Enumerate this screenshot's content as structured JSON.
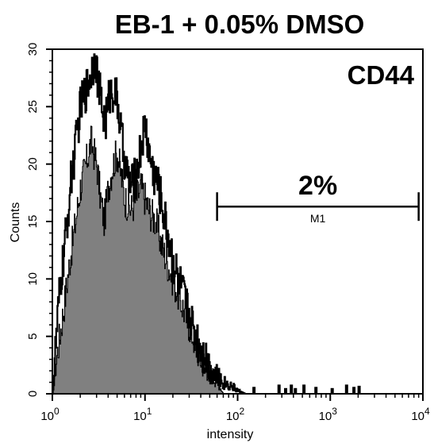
{
  "chart_data": {
    "type": "area",
    "title": "EB-1 + 0.05% DMSO",
    "marker_label": "CD44",
    "xlabel": "intensity",
    "ylabel": "Counts",
    "x_scale": "log",
    "xlim": [
      1,
      10000
    ],
    "ylim": [
      0,
      30
    ],
    "x_ticks": [
      {
        "base": "10",
        "exp": "0"
      },
      {
        "base": "10",
        "exp": "1"
      },
      {
        "base": "10",
        "exp": "2"
      },
      {
        "base": "10",
        "exp": "3"
      },
      {
        "base": "10",
        "exp": "4"
      }
    ],
    "y_ticks": [
      "0",
      "5",
      "10",
      "15",
      "20",
      "25",
      "30"
    ],
    "gate": {
      "name": "M1",
      "x_start": 60,
      "x_end": 9000,
      "y_level": 16.3,
      "percent_label": "2%"
    },
    "colors": {
      "filled_series": "#808080",
      "outline_series": "#000000"
    },
    "series": [
      {
        "role": "filled",
        "points": [
          [
            1.0,
            0
          ],
          [
            1.1,
            3
          ],
          [
            1.3,
            7
          ],
          [
            1.5,
            11
          ],
          [
            1.7,
            14
          ],
          [
            2.0,
            18
          ],
          [
            2.3,
            20
          ],
          [
            2.6,
            22
          ],
          [
            3.0,
            20
          ],
          [
            3.3,
            17
          ],
          [
            3.6,
            15
          ],
          [
            4.0,
            18
          ],
          [
            4.5,
            20
          ],
          [
            5.0,
            21
          ],
          [
            5.5,
            19
          ],
          [
            6.0,
            17
          ],
          [
            7.0,
            16
          ],
          [
            8.0,
            17
          ],
          [
            9.0,
            18
          ],
          [
            10.0,
            17
          ],
          [
            11.0,
            16
          ],
          [
            13.0,
            15
          ],
          [
            15.0,
            13
          ],
          [
            18.0,
            11
          ],
          [
            22.0,
            9
          ],
          [
            27.0,
            7
          ],
          [
            33.0,
            5
          ],
          [
            40.0,
            3
          ],
          [
            50.0,
            2
          ],
          [
            60.0,
            1
          ],
          [
            70.0,
            0
          ]
        ]
      },
      {
        "role": "outline",
        "points": [
          [
            1.0,
            0
          ],
          [
            1.1,
            5
          ],
          [
            1.2,
            9
          ],
          [
            1.4,
            14
          ],
          [
            1.6,
            19
          ],
          [
            1.8,
            22
          ],
          [
            2.0,
            25
          ],
          [
            2.3,
            26.5
          ],
          [
            2.6,
            28
          ],
          [
            2.9,
            29.5
          ],
          [
            3.1,
            27
          ],
          [
            3.4,
            25
          ],
          [
            3.7,
            23.5
          ],
          [
            4.1,
            26
          ],
          [
            4.6,
            26.5
          ],
          [
            5.1,
            25
          ],
          [
            5.6,
            22
          ],
          [
            6.2,
            19.5
          ],
          [
            7.0,
            18
          ],
          [
            8.0,
            19
          ],
          [
            9.0,
            21.5
          ],
          [
            10.0,
            23.5
          ],
          [
            11.0,
            21
          ],
          [
            12.5,
            19
          ],
          [
            14.0,
            18
          ],
          [
            16.0,
            15.5
          ],
          [
            18.5,
            13
          ],
          [
            21.0,
            11
          ],
          [
            24.0,
            9.5
          ],
          [
            27.0,
            8
          ],
          [
            31.0,
            6.5
          ],
          [
            35.0,
            5
          ],
          [
            40.0,
            4
          ],
          [
            46.0,
            3
          ],
          [
            52.0,
            2
          ],
          [
            60.0,
            1.5
          ],
          [
            70.0,
            1
          ],
          [
            85.0,
            0.7
          ],
          [
            100.0,
            0.3
          ],
          [
            120.0,
            0
          ]
        ]
      }
    ],
    "scatter_counts": [
      [
        150,
        0.6
      ],
      [
        280,
        0.8
      ],
      [
        330,
        0.5
      ],
      [
        380,
        0.8
      ],
      [
        420,
        0.5
      ],
      [
        520,
        0.8
      ],
      [
        700,
        0.6
      ],
      [
        1050,
        0.5
      ],
      [
        1500,
        0.8
      ],
      [
        1800,
        0.6
      ],
      [
        2050,
        0.7
      ]
    ]
  }
}
